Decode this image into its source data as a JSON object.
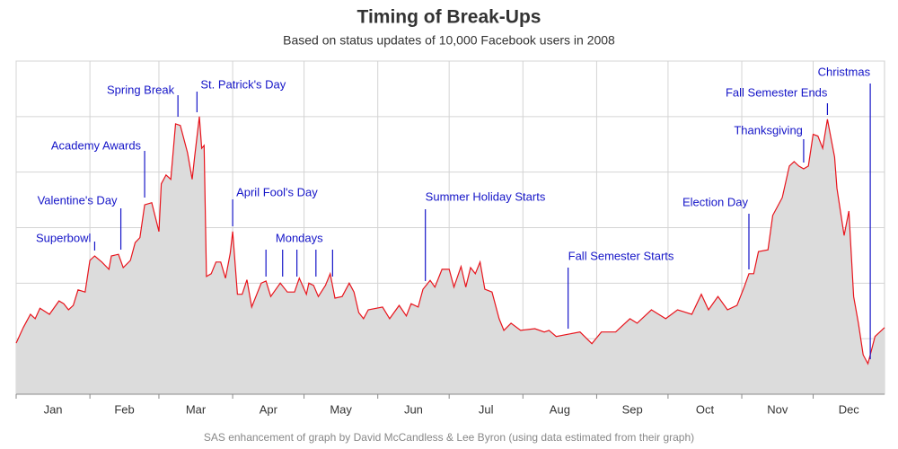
{
  "chart_data": {
    "type": "area",
    "title": "Timing of Break-Ups",
    "subtitle": "Based on status updates of 10,000 Facebook users in 2008",
    "footnote": "SAS enhancement of graph by David McCandless & Lee Byron (using data estimated from their graph)",
    "xlim": [
      0,
      365
    ],
    "xticks": [
      {
        "value": 0,
        "label": "Jan"
      },
      {
        "value": 31,
        "label": "Feb"
      },
      {
        "value": 60,
        "label": "Mar"
      },
      {
        "value": 91,
        "label": "Apr"
      },
      {
        "value": 121,
        "label": "May"
      },
      {
        "value": 152,
        "label": "Jun"
      },
      {
        "value": 182,
        "label": "Jul"
      },
      {
        "value": 213,
        "label": "Aug"
      },
      {
        "value": 244,
        "label": "Sep"
      },
      {
        "value": 274,
        "label": "Oct"
      },
      {
        "value": 305,
        "label": "Nov"
      },
      {
        "value": 335,
        "label": "Dec"
      }
    ],
    "ylim": [
      0,
      6
    ],
    "yticks": [
      0,
      1,
      2,
      3,
      4,
      5,
      6
    ],
    "grid": true,
    "line_color": "#e8141c",
    "fill_color": "#dcdcdc",
    "annotation_color": "#1515c8",
    "x": [
      0,
      3,
      6,
      8,
      10,
      14,
      18,
      20,
      22,
      24,
      26,
      29,
      31,
      33,
      36,
      39,
      40,
      43,
      45,
      48,
      50,
      52,
      54,
      57,
      60,
      61,
      63,
      65,
      67,
      69,
      72,
      74,
      75,
      77,
      78,
      79,
      80,
      82,
      84,
      86,
      88,
      90,
      91,
      93,
      95,
      97,
      99,
      103,
      105,
      107,
      111,
      114,
      117,
      119,
      122,
      123,
      125,
      127,
      130,
      132,
      134,
      137,
      140,
      142,
      144,
      146,
      148,
      154,
      157,
      161,
      164,
      166,
      169,
      171,
      174,
      176,
      179,
      182,
      184,
      187,
      189,
      191,
      193,
      195,
      197,
      200,
      203,
      205,
      208,
      212,
      218,
      222,
      224,
      227,
      232,
      237,
      242,
      246,
      252,
      258,
      261,
      267,
      273,
      278,
      284,
      288,
      291,
      295,
      299,
      303,
      306,
      308,
      310,
      312,
      316,
      318,
      320,
      322,
      325,
      327,
      329,
      331,
      333,
      335,
      337,
      339,
      341,
      344,
      345,
      348,
      350,
      352,
      354,
      356,
      358,
      359,
      361,
      365
    ],
    "values": [
      0.92,
      1.2,
      1.44,
      1.36,
      1.55,
      1.44,
      1.68,
      1.63,
      1.52,
      1.6,
      1.88,
      1.84,
      2.41,
      2.49,
      2.38,
      2.25,
      2.49,
      2.52,
      2.28,
      2.41,
      2.73,
      2.82,
      3.41,
      3.45,
      2.93,
      3.79,
      3.95,
      3.87,
      4.87,
      4.84,
      4.35,
      3.87,
      4.27,
      5.0,
      4.43,
      4.48,
      2.12,
      2.17,
      2.38,
      2.38,
      2.09,
      2.54,
      2.93,
      1.8,
      1.8,
      2.06,
      1.57,
      2.0,
      2.04,
      1.76,
      2.0,
      1.84,
      1.84,
      2.09,
      1.8,
      2.0,
      1.96,
      1.76,
      1.96,
      2.17,
      1.73,
      1.76,
      2.0,
      1.84,
      1.47,
      1.36,
      1.52,
      1.57,
      1.36,
      1.6,
      1.41,
      1.63,
      1.57,
      1.89,
      2.05,
      1.93,
      2.25,
      2.25,
      1.93,
      2.3,
      1.93,
      2.28,
      2.17,
      2.38,
      1.89,
      1.84,
      1.36,
      1.15,
      1.28,
      1.15,
      1.18,
      1.12,
      1.15,
      1.04,
      1.08,
      1.12,
      0.91,
      1.12,
      1.12,
      1.36,
      1.28,
      1.52,
      1.36,
      1.52,
      1.44,
      1.8,
      1.52,
      1.76,
      1.52,
      1.6,
      1.93,
      2.17,
      2.17,
      2.57,
      2.6,
      3.22,
      3.38,
      3.54,
      4.11,
      4.19,
      4.11,
      4.06,
      4.11,
      4.68,
      4.65,
      4.43,
      4.95,
      4.27,
      3.71,
      2.86,
      3.3,
      1.76,
      1.28,
      0.71,
      0.55,
      0.71,
      1.04,
      1.2
    ],
    "annotations": [
      {
        "text": "Superbowl",
        "x": [
          33
        ]
      },
      {
        "text": "Valentine's Day",
        "x": [
          44
        ]
      },
      {
        "text": "Academy Awards",
        "x": [
          54
        ]
      },
      {
        "text": "Spring Break",
        "x": [
          68
        ]
      },
      {
        "text": "St. Patrick's Day",
        "x": [
          76
        ]
      },
      {
        "text": "April Fool's Day",
        "x": [
          91
        ]
      },
      {
        "text": "Mondays",
        "x": [
          105,
          112,
          118,
          126,
          133
        ]
      },
      {
        "text": "Summer Holiday Starts",
        "x": [
          172
        ]
      },
      {
        "text": "Fall Semester Starts",
        "x": [
          232
        ]
      },
      {
        "text": "Election Day",
        "x": [
          308
        ]
      },
      {
        "text": "Thanksgiving",
        "x": [
          331
        ]
      },
      {
        "text": "Fall Semester Ends",
        "x": [
          341
        ]
      },
      {
        "text": "Christmas",
        "x": [
          359
        ]
      }
    ]
  }
}
